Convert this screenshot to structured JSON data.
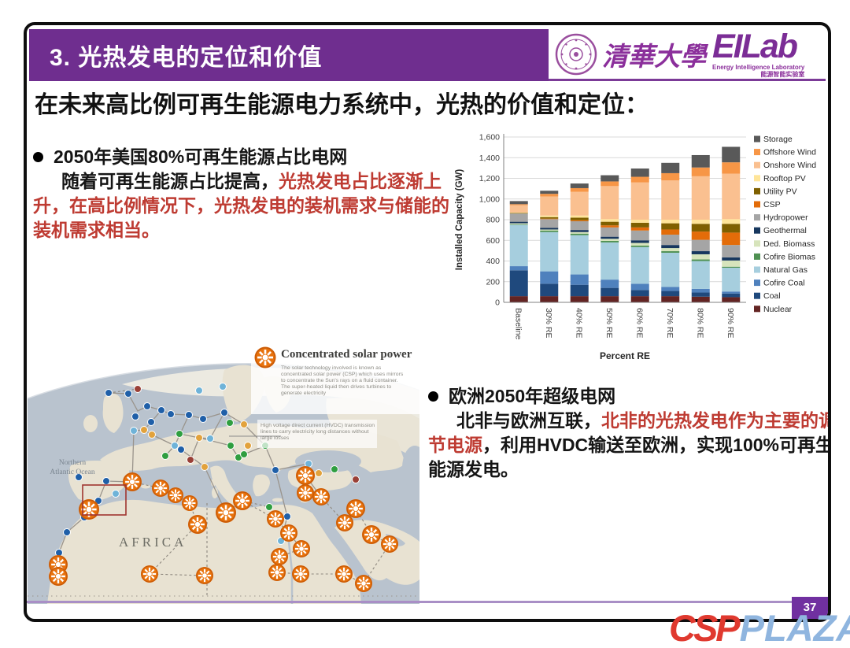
{
  "slide": {
    "header": {
      "title": "3. 光热发电的定位和价值"
    },
    "logos": {
      "university_name": "清華大學",
      "lab_name": "EILab",
      "lab_subtitle_en": "Energy Intelligence Laboratory",
      "lab_subtitle_cn": "能源智能实验室"
    },
    "heading": "在未来高比例可再生能源电力系统中，光热的价值和定位：",
    "bullet1": {
      "line1": "2050年美国80%可再生能源占比电网",
      "black2": "随着可再生能源占比提高，",
      "red1": "光热发电占比逐渐上升，在高比例情况下，光热发电的装机需求与储能的装机需求相当。"
    },
    "bullet2": {
      "line1": "欧洲2050年超级电网",
      "black2": "北非与欧洲互联，",
      "red1": "北非的光热发电作为主要的调节电源",
      "black3": "，利用HVDC输送至欧洲，实现100%可再生能源发电。"
    },
    "page_number": "37",
    "watermark": {
      "csp": "CSP",
      "plaza": "PLAZA",
      "csp_color": "#e0392f",
      "plaza_color": "#8fb5df"
    }
  },
  "map": {
    "title": "Concentrated solar power",
    "description": "The solar technology involved is known as concentrated solar power (CSP) which uses mirrors to concentrate the Sun's rays on a fluid container. The super-heated liquid then drives turbines to generate electricity",
    "hvdc_note": "High voltage direct current (HVDC) transmission lines to carry electricity long distances without large losses",
    "ocean_label": "Northern Atlantic Ocean",
    "continent_label": "AFRICA"
  },
  "chart_data": {
    "type": "bar",
    "stacked": true,
    "title": "",
    "xlabel": "Percent RE",
    "ylabel": "Installed Capacity (GW)",
    "ylim": [
      0,
      1600
    ],
    "ytick_step": 200,
    "yticks": [
      "0",
      "200",
      "400",
      "600",
      "800",
      "1,000",
      "1,200",
      "1,400",
      "1,600"
    ],
    "grid": true,
    "legend_position": "right",
    "categories": [
      "Baseline",
      "30% RE",
      "40% RE",
      "50% RE",
      "60% RE",
      "70% RE",
      "80% RE",
      "90% RE"
    ],
    "series": [
      {
        "name": "Nuclear",
        "color": "#632423",
        "values": [
          60,
          60,
          60,
          60,
          60,
          60,
          55,
          50
        ]
      },
      {
        "name": "Coal",
        "color": "#1f497d",
        "values": [
          250,
          120,
          110,
          80,
          60,
          50,
          40,
          35
        ]
      },
      {
        "name": "Cofire Coal",
        "color": "#4f81bd",
        "values": [
          40,
          120,
          100,
          80,
          60,
          40,
          35,
          20
        ]
      },
      {
        "name": "Natural Gas",
        "color": "#a6cede",
        "values": [
          400,
          380,
          380,
          360,
          355,
          330,
          270,
          230
        ]
      },
      {
        "name": "Cofire Biomas",
        "color": "#4f9153",
        "values": [
          5,
          15,
          15,
          15,
          15,
          15,
          15,
          10
        ]
      },
      {
        "name": "Ded. Biomass",
        "color": "#d7e4bc",
        "values": [
          10,
          10,
          15,
          20,
          25,
          30,
          50,
          60
        ]
      },
      {
        "name": "Geothermal",
        "color": "#17375e",
        "values": [
          15,
          15,
          20,
          20,
          25,
          30,
          30,
          30
        ]
      },
      {
        "name": "Hydropower",
        "color": "#a5a5a5",
        "values": [
          80,
          85,
          85,
          90,
          95,
          100,
          110,
          120
        ]
      },
      {
        "name": "CSP",
        "color": "#e36c09",
        "values": [
          0,
          5,
          10,
          20,
          30,
          50,
          80,
          120
        ]
      },
      {
        "name": "Utility PV",
        "color": "#7f6000",
        "values": [
          5,
          15,
          25,
          35,
          45,
          60,
          75,
          85
        ]
      },
      {
        "name": "Rooftop PV",
        "color": "#ffe599",
        "values": [
          5,
          15,
          20,
          25,
          30,
          35,
          40,
          45
        ]
      },
      {
        "name": "Onshore Wind",
        "color": "#fac090",
        "values": [
          70,
          185,
          230,
          320,
          360,
          380,
          420,
          440
        ]
      },
      {
        "name": "Offshore Wind",
        "color": "#f79646",
        "values": [
          10,
          25,
          35,
          45,
          55,
          70,
          85,
          110
        ]
      },
      {
        "name": "Storage",
        "color": "#595959",
        "values": [
          30,
          30,
          45,
          60,
          80,
          100,
          120,
          150
        ]
      }
    ]
  }
}
